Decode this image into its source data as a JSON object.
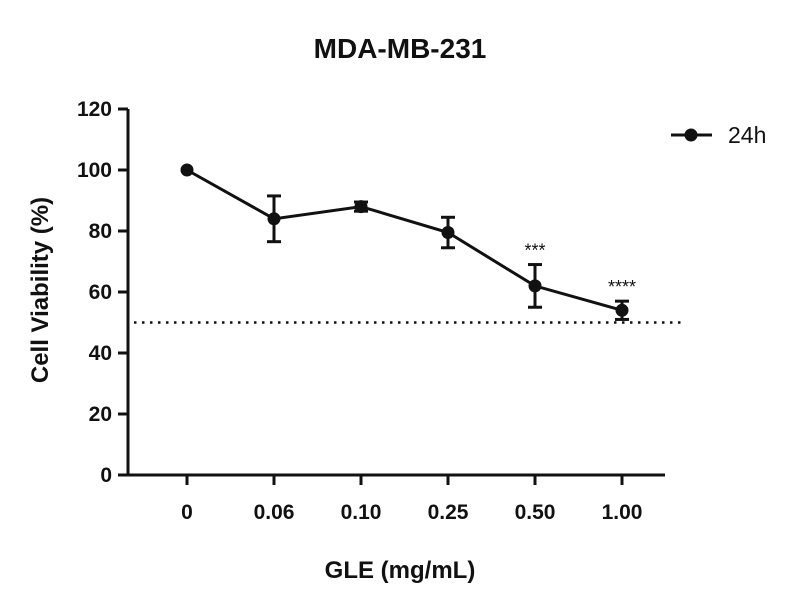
{
  "chart_data": {
    "type": "line",
    "title": "MDA-MB-231",
    "xlabel": "GLE (mg/mL)",
    "ylabel": "Cell Viability (%)",
    "ylim": [
      0,
      120
    ],
    "yticks": [
      0,
      20,
      40,
      60,
      80,
      100,
      120
    ],
    "categories": [
      "0",
      "0.06",
      "0.10",
      "0.25",
      "0.50",
      "1.00"
    ],
    "reference_line": 50,
    "series": [
      {
        "name": "24h",
        "values": [
          100,
          84,
          88,
          79.5,
          62,
          54
        ],
        "error": [
          0,
          7.5,
          1.5,
          5,
          7,
          3
        ],
        "significance": [
          "",
          "",
          "",
          "",
          "***",
          "****"
        ]
      }
    ],
    "legend": "top-right",
    "grid": false
  }
}
